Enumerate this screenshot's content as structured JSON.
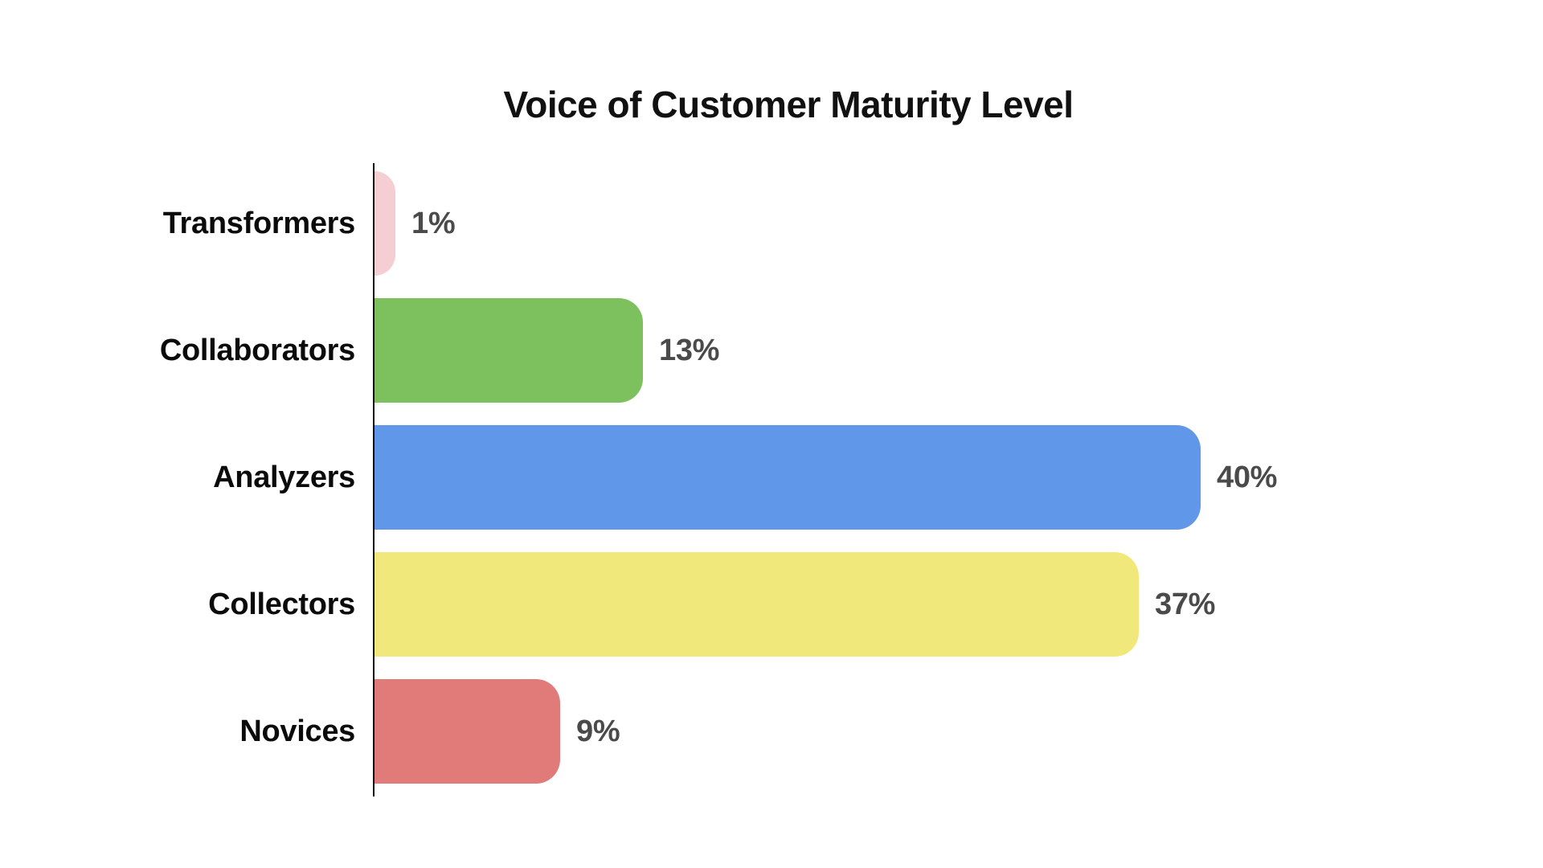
{
  "chart_data": {
    "type": "bar",
    "orientation": "horizontal",
    "title": "Voice of Customer Maturity Level",
    "categories": [
      "Transformers",
      "Collaborators",
      "Analyzers",
      "Collectors",
      "Novices"
    ],
    "values": [
      1,
      13,
      40,
      37,
      9
    ],
    "value_labels": [
      "1%",
      "13%",
      "40%",
      "37%",
      "9%"
    ],
    "bar_colors": [
      "#f4ced2",
      "#7cc15e",
      "#6197e8",
      "#f1e87c",
      "#e07b79"
    ],
    "xlim": [
      0,
      40
    ],
    "grid": false,
    "legend": "none",
    "background_color": "#ffffff",
    "axis_color": "#0a0a0a",
    "category_label_color": "#0b0b0b",
    "value_label_color": "#4a4a4a",
    "title_color": "#111111"
  }
}
